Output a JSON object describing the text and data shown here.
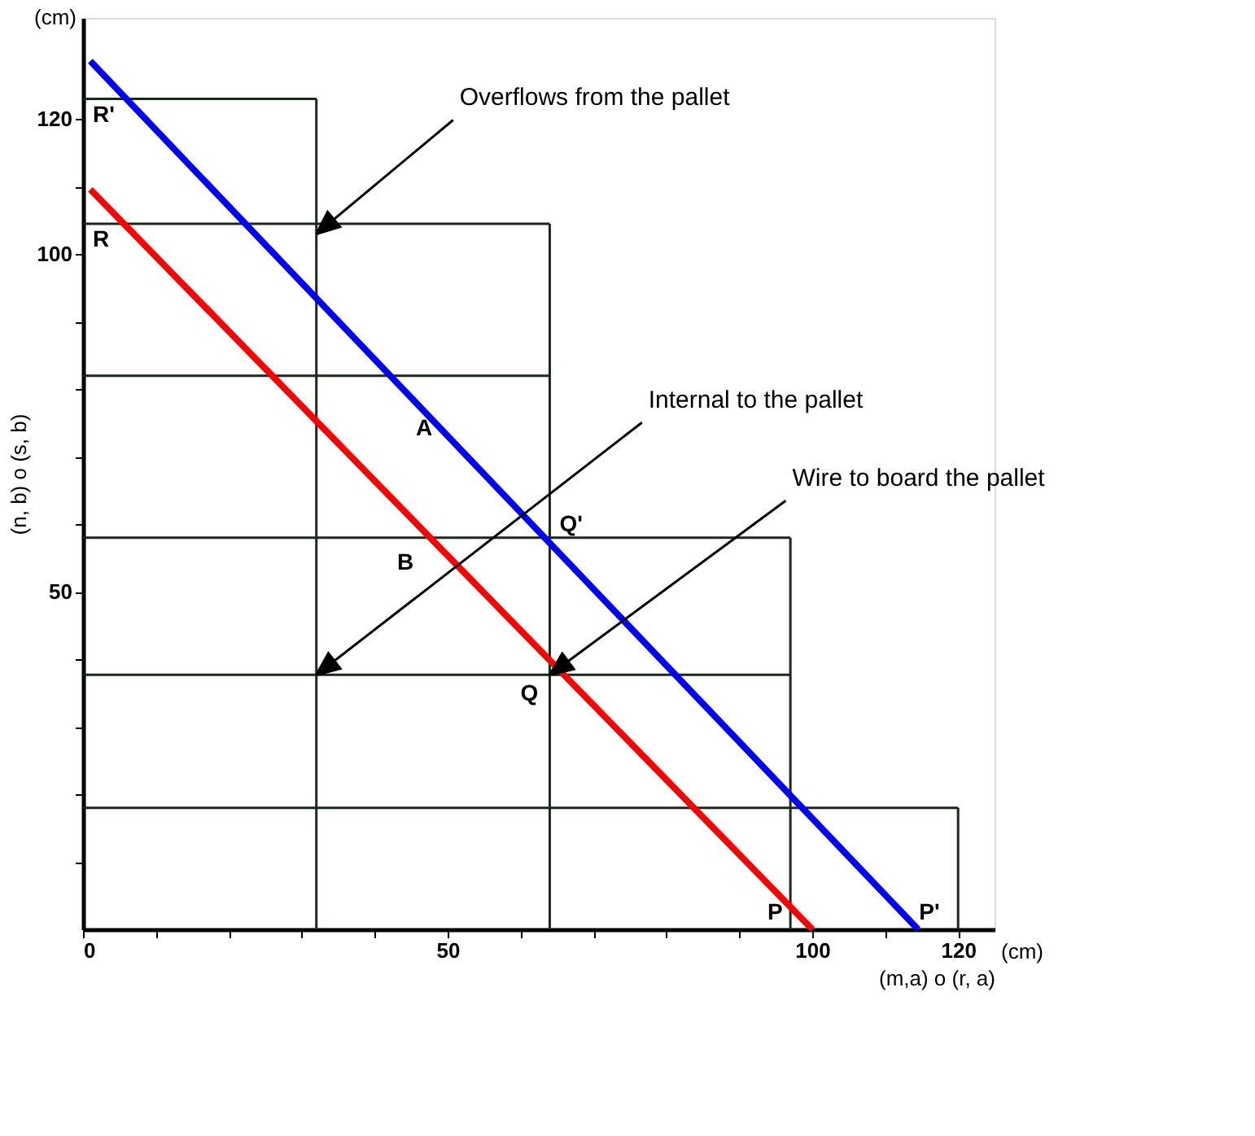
{
  "chart_data": {
    "type": "line",
    "xlabel": "(m,a) o (r, a)",
    "ylabel": "(n, b) o (s, b)",
    "xlim": [
      0,
      125
    ],
    "ylim": [
      0,
      135
    ],
    "xticks": [
      0,
      {
        "value": 10,
        "label": null
      },
      {
        "value": 20,
        "label": null
      },
      {
        "value": 30,
        "label": null
      },
      {
        "value": 40,
        "label": null
      },
      50,
      {
        "value": 60,
        "label": null
      },
      {
        "value": 70,
        "label": null
      },
      {
        "value": 80,
        "label": null
      },
      {
        "value": 90,
        "label": null
      },
      100,
      {
        "value": 110,
        "label": null
      },
      120
    ],
    "yticks": [
      {
        "value": 10,
        "label": null
      },
      {
        "value": 20,
        "label": null
      },
      {
        "value": 30,
        "label": null
      },
      {
        "value": 40,
        "label": null
      },
      50,
      {
        "value": 60,
        "label": null
      },
      {
        "value": 70,
        "label": null
      },
      {
        "value": 80,
        "label": null
      },
      {
        "value": 90,
        "label": null
      },
      100,
      {
        "value": 110,
        "label": null
      },
      120
    ],
    "grid": false,
    "marker": "none",
    "line_style": "solid",
    "series": [
      {
        "color": "#1a2a1a",
        "x": [
          32,
          32
        ],
        "values": [
          0,
          123
        ]
      },
      {
        "color": "#1a2a1a",
        "x": [
          64,
          64
        ],
        "values": [
          0,
          104.5
        ]
      },
      {
        "color": "#1a2a1a",
        "x": [
          97,
          97
        ],
        "values": [
          0,
          58
        ]
      },
      {
        "color": "#1a2a1a",
        "x": [
          120,
          120
        ],
        "values": [
          0,
          18
        ]
      },
      {
        "color": "#1a2a1a",
        "x": [
          0,
          32
        ],
        "values": [
          123,
          123
        ]
      },
      {
        "color": "#1a2a1a",
        "x": [
          0,
          64
        ],
        "values": [
          104.5,
          104.5
        ]
      },
      {
        "color": "#1a2a1a",
        "x": [
          0,
          64
        ],
        "values": [
          82,
          82
        ]
      },
      {
        "color": "#1a2a1a",
        "x": [
          0,
          97
        ],
        "values": [
          58,
          58
        ]
      },
      {
        "color": "#1a2a1a",
        "x": [
          0,
          97
        ],
        "values": [
          37.7,
          37.7
        ]
      },
      {
        "color": "#1a2a1a",
        "x": [
          0,
          120
        ],
        "values": [
          18,
          18
        ]
      },
      {
        "color": "#0000ff",
        "x": [
          1,
          114.5
        ],
        "values": [
          128.6,
          0
        ]
      },
      {
        "color": "#ff0000",
        "x": [
          1,
          100
        ],
        "values": [
          109.6,
          0
        ]
      }
    ],
    "annotations": [
      {
        "text": "Overflows from the pallet",
        "x": 32,
        "y": 103
      },
      {
        "text": "Internal to the pallet",
        "x": 32,
        "y": 37.7
      },
      {
        "text": "Wire to board the pallet",
        "x": 64,
        "y": 37.7
      },
      {
        "text": "R'",
        "x": 0,
        "y": 123
      },
      {
        "text": "R",
        "x": 0,
        "y": 104.5
      },
      {
        "text": "Q'",
        "x": 64,
        "y": 58
      },
      {
        "text": "Q",
        "x": 64,
        "y": 37.7
      },
      {
        "text": "A",
        "x": 47,
        "y": 76.5
      },
      {
        "text": "B",
        "x": 48,
        "y": 57.6
      },
      {
        "text": "P",
        "x": 97,
        "y": 0
      },
      {
        "text": "P'",
        "x": 120,
        "y": 0
      },
      "(cm)",
      "(cm)"
    ]
  }
}
